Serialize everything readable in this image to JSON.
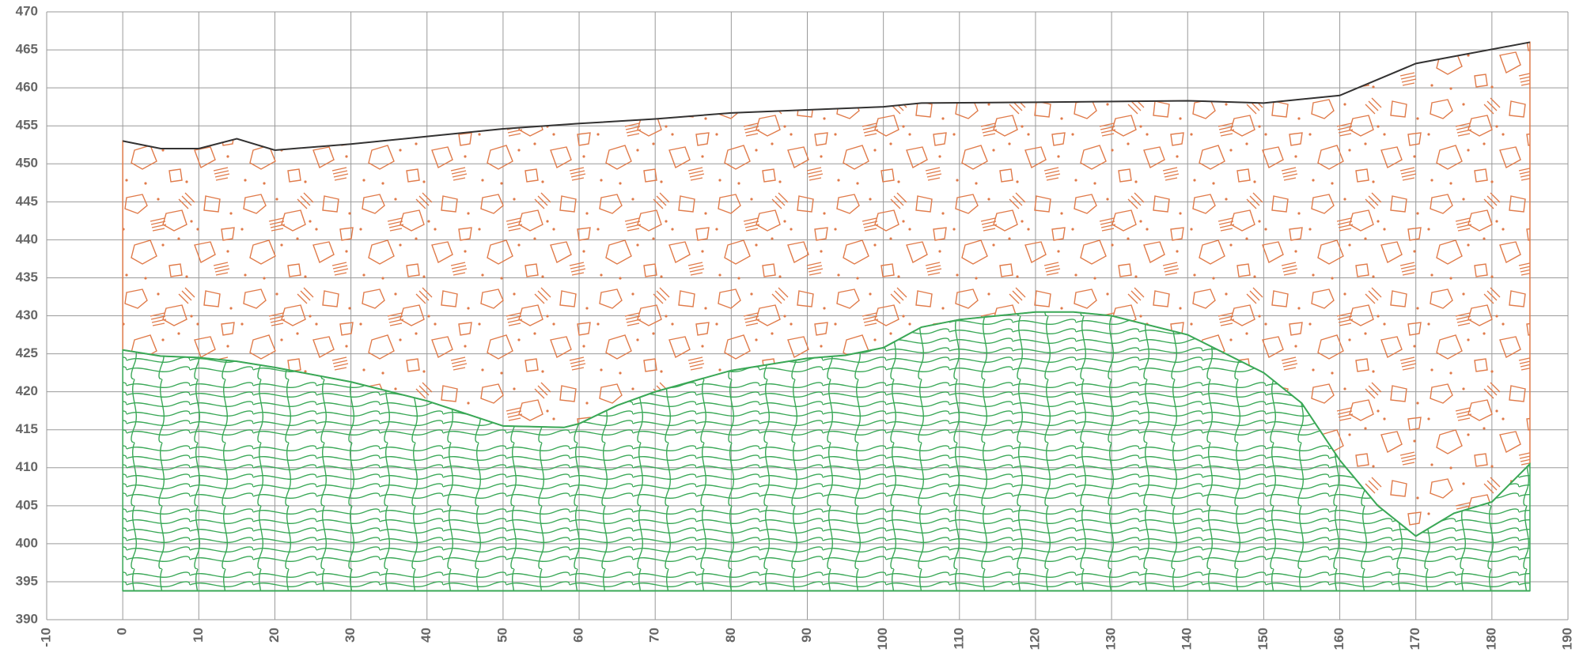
{
  "chart_data": {
    "type": "line",
    "xlim": [
      -10,
      190
    ],
    "xticks": [
      -10,
      0,
      10,
      20,
      30,
      40,
      50,
      60,
      70,
      80,
      90,
      100,
      110,
      120,
      130,
      140,
      150,
      160,
      170,
      180,
      190
    ],
    "ylim": [
      390,
      470
    ],
    "yticks": [
      390,
      395,
      400,
      405,
      410,
      415,
      420,
      425,
      430,
      435,
      440,
      445,
      450,
      455,
      460,
      465,
      470
    ],
    "grid": true,
    "series": [
      {
        "color": "#333333",
        "x": [
          0,
          5,
          10,
          15,
          20,
          30,
          40,
          50,
          60,
          70,
          80,
          90,
          100,
          105,
          120,
          140,
          150,
          160,
          170,
          185
        ],
        "values": [
          453,
          452,
          452,
          453.3,
          451.8,
          452.6,
          453.6,
          454.6,
          455.3,
          455.9,
          456.7,
          457.1,
          457.5,
          458,
          458.1,
          458.3,
          458,
          459,
          463.2,
          466
        ]
      },
      {
        "color": "#3aa857",
        "x": [
          0,
          5,
          10,
          15,
          20,
          30,
          40,
          50,
          58,
          60,
          65,
          70,
          80,
          90,
          95,
          100,
          105,
          110,
          115,
          120,
          125,
          130,
          140,
          150,
          155,
          160,
          165,
          170,
          175,
          180,
          185
        ],
        "values": [
          425.5,
          424.7,
          424.5,
          424,
          423.2,
          421.3,
          418.8,
          415.5,
          415.3,
          415.8,
          418.2,
          420,
          422.8,
          424.4,
          424.8,
          425.8,
          428.5,
          429.5,
          430,
          430.5,
          430.5,
          430,
          427.5,
          422.5,
          418.5,
          411,
          405,
          401,
          404,
          405.5,
          410.5
        ]
      },
      {
        "color": "#3aa857",
        "x": [
          0,
          185
        ],
        "values": [
          393.8,
          393.8
        ]
      }
    ]
  }
}
